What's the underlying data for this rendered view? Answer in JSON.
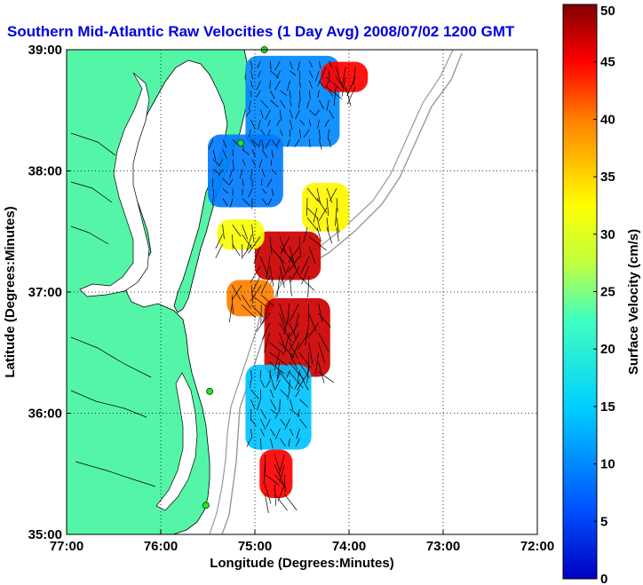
{
  "chart_data": {
    "type": "heatmap",
    "title": "Southern Mid-Atlantic Raw Velocities (1 Day Avg) 2008/07/02 1200 GMT",
    "xlabel": "Longitude (Degrees:Minutes)",
    "ylabel": "Latitude (Degrees:Minutes)",
    "x_ticks": [
      "77:00",
      "76:00",
      "75:00",
      "74:00",
      "73:00",
      "72:00"
    ],
    "x_tick_values": [
      -77,
      -76,
      -75,
      -74,
      -73,
      -72
    ],
    "y_ticks": [
      "39:00",
      "38:00",
      "37:00",
      "36:00",
      "35:00"
    ],
    "y_tick_values": [
      39,
      38,
      37,
      36,
      35
    ],
    "xlim": [
      -77,
      -72
    ],
    "ylim": [
      35,
      39
    ],
    "grid": true,
    "colorbar": {
      "label": "Surface Velocity (cm/s)",
      "ticks": [
        "50",
        "45",
        "40",
        "35",
        "30",
        "25",
        "20",
        "15",
        "10",
        "5",
        "0"
      ],
      "tick_values": [
        50,
        45,
        40,
        35,
        30,
        25,
        20,
        15,
        10,
        5,
        0
      ],
      "range": [
        0,
        50
      ],
      "colormap": "jet"
    },
    "land_color": "#55f5a8",
    "regions": [
      {
        "lon": [
          -75.1,
          -74.1
        ],
        "lat": [
          38.2,
          38.95
        ],
        "speed": 10
      },
      {
        "lon": [
          -75.5,
          -74.7
        ],
        "lat": [
          37.7,
          38.3
        ],
        "speed": 9
      },
      {
        "lon": [
          -74.3,
          -73.8
        ],
        "lat": [
          38.65,
          38.9
        ],
        "speed": 45
      },
      {
        "lon": [
          -74.5,
          -74.0
        ],
        "lat": [
          37.5,
          37.9
        ],
        "speed": 33
      },
      {
        "lon": [
          -75.0,
          -74.3
        ],
        "lat": [
          37.1,
          37.5
        ],
        "speed": 47
      },
      {
        "lon": [
          -75.4,
          -74.9
        ],
        "lat": [
          37.35,
          37.6
        ],
        "speed": 32
      },
      {
        "lon": [
          -75.3,
          -74.8
        ],
        "lat": [
          36.8,
          37.1
        ],
        "speed": 40
      },
      {
        "lon": [
          -74.9,
          -74.2
        ],
        "lat": [
          36.3,
          36.95
        ],
        "speed": 47
      },
      {
        "lon": [
          -75.1,
          -74.4
        ],
        "lat": [
          35.7,
          36.4
        ],
        "speed": 14
      },
      {
        "lon": [
          -74.95,
          -74.6
        ],
        "lat": [
          35.3,
          35.7
        ],
        "speed": 45
      }
    ],
    "stations": [
      {
        "lon": -74.9,
        "lat": 39.0
      },
      {
        "lon": -75.15,
        "lat": 38.23
      },
      {
        "lon": -75.48,
        "lat": 36.18
      },
      {
        "lon": -75.52,
        "lat": 35.24
      }
    ]
  }
}
